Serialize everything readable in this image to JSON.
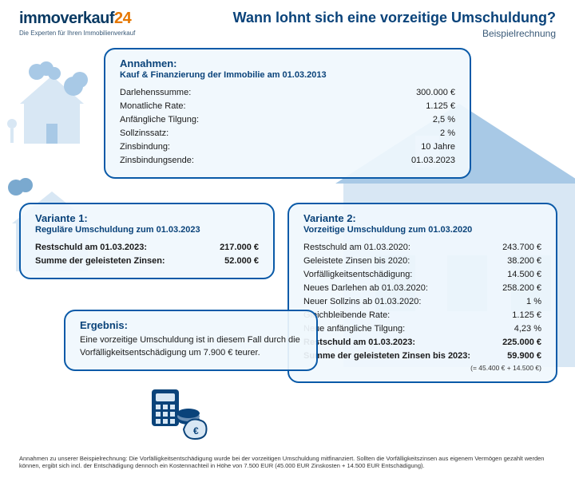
{
  "palette": {
    "brand_blue": "#0a437a",
    "border_blue": "#0a5aa8",
    "card_bg": "rgba(240,247,253,0.92)",
    "orange": "#e67700",
    "text": "#1a1a1a",
    "illus_light": "#d8e7f4",
    "illus_mid": "#a8c9e6"
  },
  "header": {
    "logo_part1": "immoverkauf",
    "logo_part2": "24",
    "tagline": "Die Experten für Ihren Immobilienverkauf",
    "title": "Wann lohnt sich eine vorzeitige Umschuldung?",
    "subtitle": "Beispielrechnung"
  },
  "assumptions": {
    "heading": "Annahmen:",
    "subtitle": "Kauf & Finanzierung der Immobilie am 01.03.2013",
    "rows": [
      {
        "label": "Darlehenssumme:",
        "value": "300.000 €"
      },
      {
        "label": "Monatliche Rate:",
        "value": "1.125 €"
      },
      {
        "label": "Anfängliche Tilgung:",
        "value": "2,5 %"
      },
      {
        "label": "Sollzinssatz:",
        "value": "2 %"
      },
      {
        "label": "Zinsbindung:",
        "value": "10 Jahre"
      },
      {
        "label": "Zinsbindungsende:",
        "value": "01.03.2023"
      }
    ]
  },
  "variant1": {
    "heading": "Variante 1:",
    "subtitle": "Reguläre Umschuldung zum 01.03.2023",
    "rows": [
      {
        "label": "Restschuld am 01.03.2023:",
        "value": "217.000 €",
        "bold": true
      },
      {
        "label": "Summe der geleisteten Zinsen:",
        "value": "52.000 €",
        "bold": true
      }
    ]
  },
  "variant2": {
    "heading": "Variante 2:",
    "subtitle": "Vorzeitige Umschuldung zum 01.03.2020",
    "rows": [
      {
        "label": "Restschuld am 01.03.2020:",
        "value": "243.700 €"
      },
      {
        "label": "Geleistete Zinsen bis 2020:",
        "value": "38.200 €"
      },
      {
        "label": "Vorfälligkeitsentschädigung:",
        "value": "14.500 €"
      },
      {
        "label": "Neues Darlehen ab 01.03.2020:",
        "value": "258.200 €"
      },
      {
        "label": "Neuer Sollzins ab 01.03.2020:",
        "value": "1 %"
      },
      {
        "label": "Gleichbleibende Rate:",
        "value": "1.125 €"
      },
      {
        "label": "Neue anfängliche Tilgung:",
        "value": "4,23 %"
      },
      {
        "label": "Restschuld am 01.03.2023:",
        "value": "225.000 €",
        "bold": true
      },
      {
        "label": "Summe der geleisteten Zinsen bis 2023:",
        "value": "59.900 €",
        "bold": true
      }
    ],
    "note": "(= 45.400 € + 14.500 €)"
  },
  "result": {
    "heading": "Ergebnis:",
    "text": "Eine vorzeitige Umschuldung ist in diesem Fall durch die Vorfälligkeitsentschädigung um 7.900 € teurer."
  },
  "footnote": "Annahmen zu unserer Beispielrechnung: Die Vorfälligkeitsentschädigung wurde bei der vorzeitigen Umschuldung mitfinanziert. Sollten die Vorfälligkeitszinsen aus eigenem Vermögen gezahlt werden können, ergibt sich incl. der Entschädigung dennoch ein Kostennachteil in Höhe von 7.500 EUR (45.000 EUR Zinskosten + 14.500 EUR Entschädigung)."
}
